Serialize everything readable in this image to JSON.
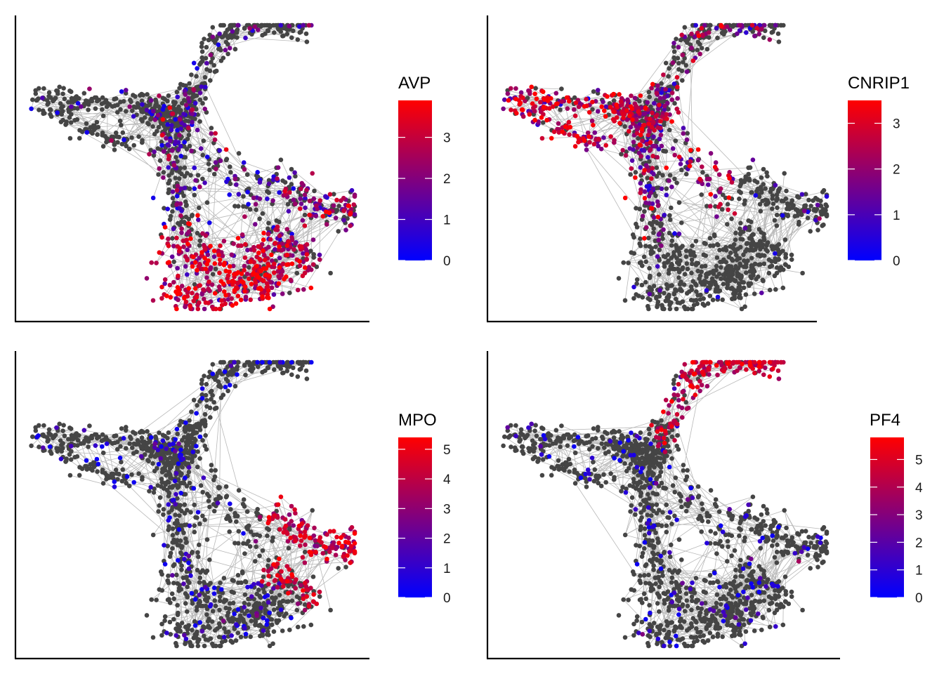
{
  "colors": {
    "low": "#0000FF",
    "high": "#FF0000",
    "unexpressed_point": "#454545",
    "edge": "#B8B8B8",
    "axis": "#000000"
  },
  "chart_data": [
    {
      "type": "scatter",
      "subtype": "force-directed cell graph colored by gene expression",
      "gene": "AVP",
      "legend_title": "AVP",
      "legend_ticks": [
        "0",
        "1",
        "2",
        "3"
      ],
      "color_range": [
        0,
        3.9
      ],
      "expression_pattern": [
        {
          "region": "bottom lobe",
          "level": 3.0,
          "fraction": 0.9
        },
        {
          "region": "right lobe",
          "level": 2.0,
          "fraction": 0.55
        },
        {
          "region": "center",
          "level": 1.5,
          "fraction": 0.35
        },
        {
          "region": "left arm",
          "level": 0.6,
          "fraction": 0.08
        },
        {
          "region": "top arm",
          "level": 1.2,
          "fraction": 0.15
        }
      ]
    },
    {
      "type": "scatter",
      "subtype": "force-directed cell graph colored by gene expression",
      "gene": "CNRIP1",
      "legend_title": "CNRIP1",
      "legend_ticks": [
        "0",
        "1",
        "2",
        "3"
      ],
      "color_range": [
        0,
        3.5
      ],
      "expression_pattern": [
        {
          "region": "left arm",
          "level": 2.6,
          "fraction": 0.85
        },
        {
          "region": "center",
          "level": 2.0,
          "fraction": 0.55
        },
        {
          "region": "top arm",
          "level": 1.8,
          "fraction": 0.3
        },
        {
          "region": "right lobe",
          "level": 0.8,
          "fraction": 0.05
        },
        {
          "region": "bottom lobe",
          "level": 0.8,
          "fraction": 0.03
        }
      ]
    },
    {
      "type": "scatter",
      "subtype": "force-directed cell graph colored by gene expression",
      "gene": "MPO",
      "legend_title": "MPO",
      "legend_ticks": [
        "0",
        "1",
        "2",
        "3",
        "4",
        "5"
      ],
      "color_range": [
        0,
        5.4
      ],
      "expression_pattern": [
        {
          "region": "right lobe",
          "level": 4.2,
          "fraction": 0.85
        },
        {
          "region": "bottom lobe",
          "level": 0.8,
          "fraction": 0.15
        },
        {
          "region": "center",
          "level": 0.8,
          "fraction": 0.12
        },
        {
          "region": "left arm",
          "level": 0.7,
          "fraction": 0.08
        },
        {
          "region": "top arm",
          "level": 0.7,
          "fraction": 0.08
        }
      ]
    },
    {
      "type": "scatter",
      "subtype": "force-directed cell graph colored by gene expression",
      "gene": "PF4",
      "legend_title": "PF4",
      "legend_ticks": [
        "0",
        "1",
        "2",
        "3",
        "4",
        "5"
      ],
      "color_range": [
        0,
        5.8
      ],
      "expression_pattern": [
        {
          "region": "top arm",
          "level": 4.4,
          "fraction": 0.85
        },
        {
          "region": "left arm",
          "level": 0.7,
          "fraction": 0.08
        },
        {
          "region": "center",
          "level": 0.7,
          "fraction": 0.1
        },
        {
          "region": "right lobe",
          "level": 0.7,
          "fraction": 0.1
        },
        {
          "region": "bottom lobe",
          "level": 0.7,
          "fraction": 0.12
        }
      ]
    }
  ]
}
